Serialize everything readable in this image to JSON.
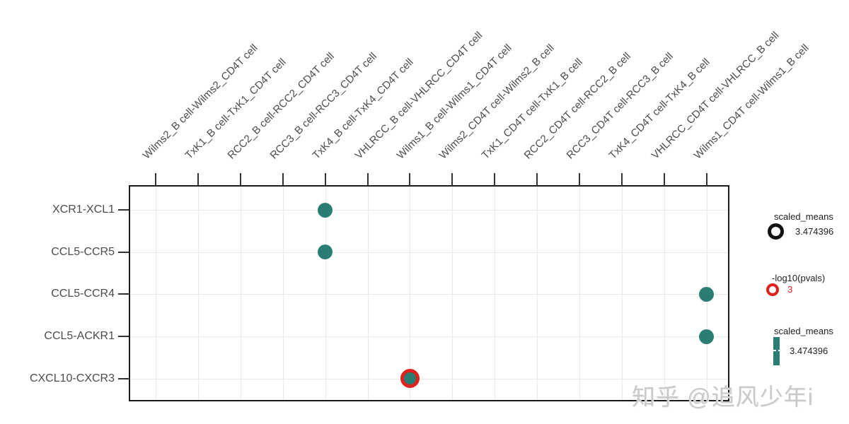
{
  "watermark": "知乎 @追风少年i",
  "chart_data": {
    "type": "scatter",
    "subtype": "dotplot (ligand-receptor interaction, cellphonedb style)",
    "title": "",
    "xlabel": "",
    "ylabel": "",
    "grid": true,
    "x_categories": [
      "Wilms2_B cell-Wilms2_CD4T cell",
      "TxK1_B cell-TxK1_CD4T cell",
      "RCC2_B cell-RCC2_CD4T cell",
      "RCC3_B cell-RCC3_CD4T cell",
      "TxK4_B cell-TxK4_CD4T cell",
      "VHLRCC_B cell-VHLRCC_CD4T cell",
      "Wilms1_B cell-Wilms1_CD4T cell",
      "Wilms2_CD4T cell-Wilms2_B cell",
      "TxK1_CD4T cell-TxK1_B cell",
      "RCC2_CD4T cell-RCC2_B cell",
      "RCC3_CD4T cell-RCC3_B cell",
      "TxK4_CD4T cell-TxK4_B cell",
      "VHLRCC_CD4T cell-VHLRCC_B cell",
      "Wilms1_CD4T cell-Wilms1_B cell"
    ],
    "y_categories": [
      "XCR1-XCL1",
      "CCL5-CCR5",
      "CCL5-CCR4",
      "CCL5-ACKR1",
      "CXCL10-CXCR3"
    ],
    "points": [
      {
        "y": "XCR1-XCL1",
        "x": "TxK4_B cell-TxK4_CD4T cell",
        "ring": false
      },
      {
        "y": "CCL5-CCR5",
        "x": "TxK4_B cell-TxK4_CD4T cell",
        "ring": false
      },
      {
        "y": "CCL5-CCR4",
        "x": "Wilms1_CD4T cell-Wilms1_B cell",
        "ring": false
      },
      {
        "y": "CCL5-ACKR1",
        "x": "Wilms1_CD4T cell-Wilms1_B cell",
        "ring": false
      },
      {
        "y": "CXCL10-CXCR3",
        "x": "Wilms1_B cell-Wilms1_CD4T cell",
        "ring": true
      }
    ],
    "legend": [
      {
        "title": "scaled_means",
        "symbol": "open-circle-black",
        "value": "3.474396"
      },
      {
        "title": "-log10(pvals)",
        "symbol": "open-circle-red",
        "value": "3"
      },
      {
        "title": "scaled_means",
        "symbol": "colorbar-teal",
        "value": "3.474396"
      }
    ],
    "colors": {
      "dot_fill": "#2a7d72",
      "ring_stroke": "#de231e",
      "legend_circle_black": "#111111",
      "axis_text": "#4c4c4c",
      "grid": "#e9e9e9",
      "border": "#1a1a1a"
    }
  }
}
